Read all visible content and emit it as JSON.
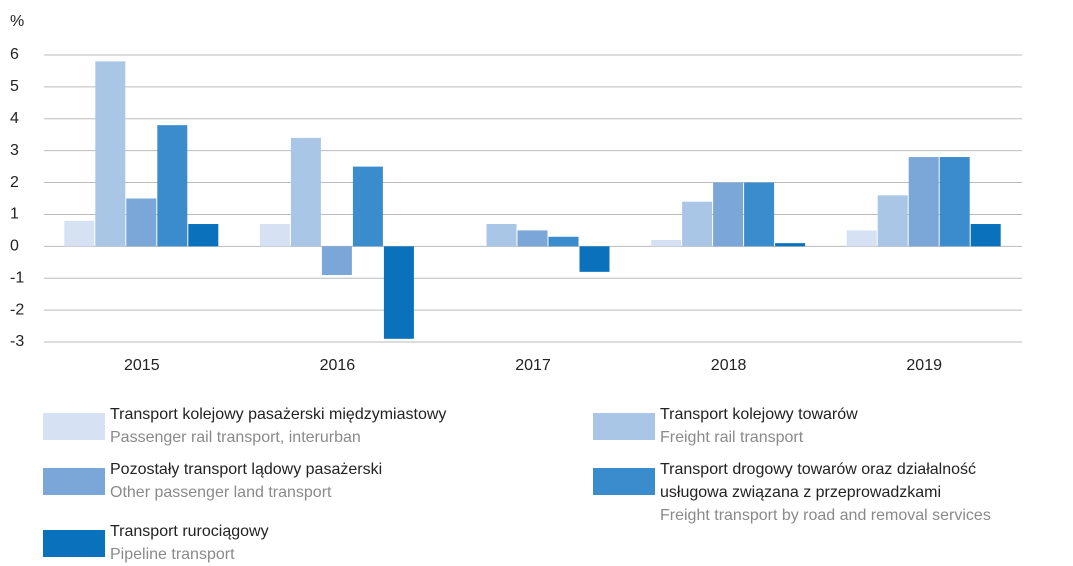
{
  "chart_data": {
    "type": "bar",
    "y_label": "%",
    "categories": [
      "2015",
      "2016",
      "2017",
      "2018",
      "2019"
    ],
    "series": [
      {
        "name": "Transport kolejowy pasażerski międzymiastowy",
        "name_en": "Passenger rail transport, interurban",
        "color": "#d6e2f3",
        "values": [
          0.8,
          0.7,
          0,
          0.2,
          0.5
        ]
      },
      {
        "name": "Transport kolejowy towarów",
        "name_en": "Freight rail transport",
        "color": "#a9c6e6",
        "values": [
          5.8,
          3.4,
          0.7,
          1.4,
          1.6
        ]
      },
      {
        "name": "Pozostały transport lądowy pasażerski",
        "name_en": "Other passenger land transport",
        "color": "#7aa6d8",
        "values": [
          1.5,
          -0.9,
          0.5,
          2.0,
          2.8
        ]
      },
      {
        "name": "Transport drogowy towarów oraz działalność usługowa związana z przeprowadzkami",
        "name_en": "Freight transport by road and removal services",
        "color": "#3b8ccc",
        "values": [
          3.8,
          2.5,
          0.3,
          2.0,
          2.8
        ]
      },
      {
        "name": "Transport rurociągowy",
        "name_en": "Pipeline transport",
        "color": "#0a72bd",
        "values": [
          0.7,
          -2.9,
          -0.8,
          0.1,
          0.7
        ]
      }
    ],
    "ylim": [
      -3,
      6
    ],
    "yticks": [
      -3,
      -2,
      -1,
      0,
      1,
      2,
      3,
      4,
      5,
      6
    ],
    "grid": true
  }
}
